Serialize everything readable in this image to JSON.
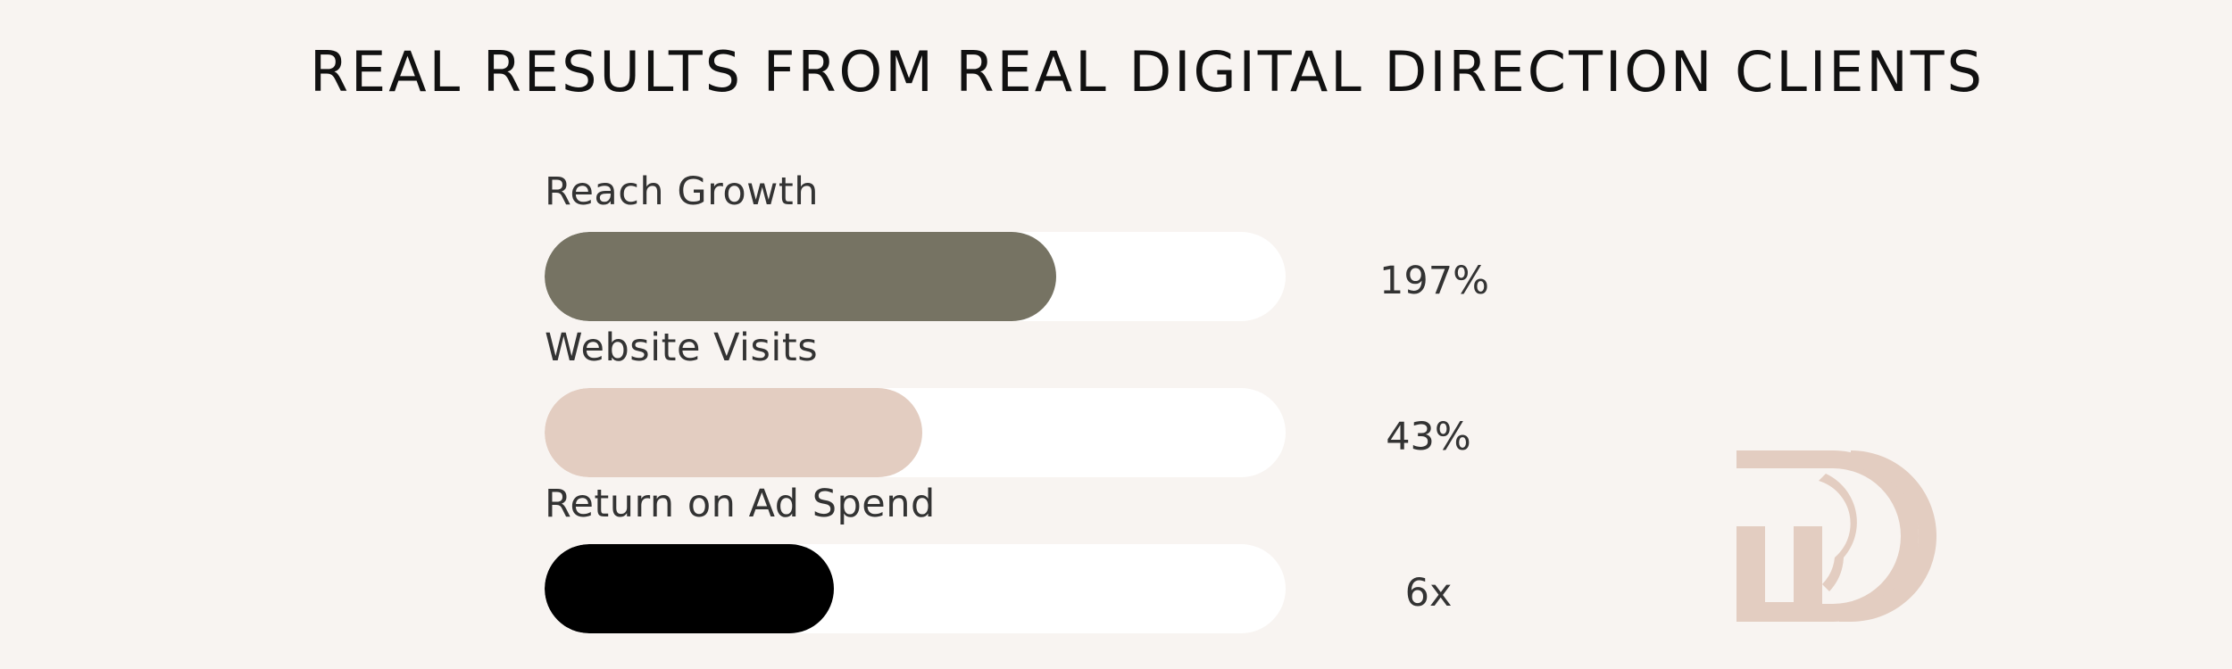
{
  "title": "REAL RESULTS FROM REAL DIGITAL DIRECTION CLIENTS",
  "chart_data": {
    "type": "bar",
    "orientation": "horizontal",
    "categories": [
      "Reach Growth",
      "Website Visits",
      "Return on Ad Spend"
    ],
    "values": [
      0.69,
      0.51,
      0.39
    ],
    "value_labels": [
      "197%",
      "43%",
      "6x"
    ],
    "colors": [
      "#767363",
      "#e3cdc1",
      "#000000"
    ],
    "track_color": "#ffffff"
  },
  "logo": {
    "icon": "digital-direction-dd-logo-icon",
    "color": "#e3cdc1"
  }
}
